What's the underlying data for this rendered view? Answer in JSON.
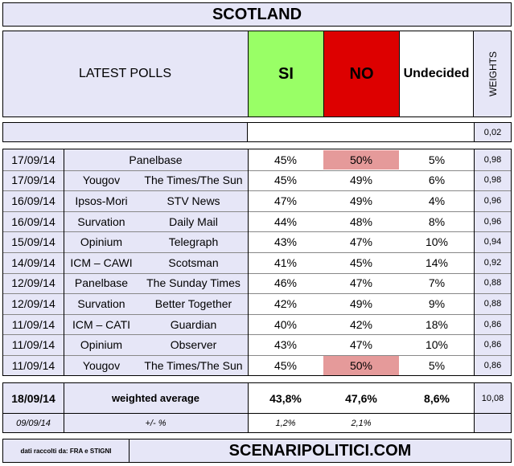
{
  "title": "SCOTLAND",
  "header": {
    "latest_polls": "LATEST POLLS",
    "si": "SI",
    "no": "NO",
    "undecided": "Undecided",
    "weights": "WEIGHTS",
    "si_color": "#99ff66",
    "no_color": "#dd0000"
  },
  "blank_row_weight": "0,02",
  "polls": [
    {
      "date": "17/09/14",
      "pollster": "Panelbase",
      "client": "",
      "si": "45%",
      "no": "50%",
      "und": "5%",
      "weight": "0,98",
      "no_highlight": true
    },
    {
      "date": "17/09/14",
      "pollster": "Yougov",
      "client": "The Times/The Sun",
      "si": "45%",
      "no": "49%",
      "und": "6%",
      "weight": "0,98",
      "no_highlight": false
    },
    {
      "date": "16/09/14",
      "pollster": "Ipsos-Mori",
      "client": "STV News",
      "si": "47%",
      "no": "49%",
      "und": "4%",
      "weight": "0,96",
      "no_highlight": false
    },
    {
      "date": "16/09/14",
      "pollster": "Survation",
      "client": "Daily Mail",
      "si": "44%",
      "no": "48%",
      "und": "8%",
      "weight": "0,96",
      "no_highlight": false
    },
    {
      "date": "15/09/14",
      "pollster": "Opinium",
      "client": "Telegraph",
      "si": "43%",
      "no": "47%",
      "und": "10%",
      "weight": "0,94",
      "no_highlight": false
    },
    {
      "date": "14/09/14",
      "pollster": "ICM – CAWI",
      "client": "Scotsman",
      "si": "41%",
      "no": "45%",
      "und": "14%",
      "weight": "0,92",
      "no_highlight": false
    },
    {
      "date": "12/09/14",
      "pollster": "Panelbase",
      "client": "The Sunday Times",
      "si": "46%",
      "no": "47%",
      "und": "7%",
      "weight": "0,88",
      "no_highlight": false
    },
    {
      "date": "12/09/14",
      "pollster": "Survation",
      "client": "Better Together",
      "si": "42%",
      "no": "49%",
      "und": "9%",
      "weight": "0,88",
      "no_highlight": false
    },
    {
      "date": "11/09/14",
      "pollster": "ICM – CATI",
      "client": "Guardian",
      "si": "40%",
      "no": "42%",
      "und": "18%",
      "weight": "0,86",
      "no_highlight": false
    },
    {
      "date": "11/09/14",
      "pollster": "Opinium",
      "client": "Observer",
      "si": "43%",
      "no": "47%",
      "und": "10%",
      "weight": "0,86",
      "no_highlight": false
    },
    {
      "date": "11/09/14",
      "pollster": "Yougov",
      "client": "The Times/The Sun",
      "si": "45%",
      "no": "50%",
      "und": "5%",
      "weight": "0,86",
      "no_highlight": true
    }
  ],
  "summary": {
    "date": "18/09/14",
    "label": "weighted average",
    "si": "43,8%",
    "no": "47,6%",
    "und": "8,6%",
    "weight": "10,08"
  },
  "delta": {
    "date": "09/09/14",
    "label": "+/- %",
    "si": "1,2%",
    "no": "2,1%"
  },
  "footer": {
    "credits": "dati raccolti da: FRA e STIGNI",
    "site": "SCENARIPOLITICI.COM"
  },
  "highlight_color": "#e59a9a"
}
